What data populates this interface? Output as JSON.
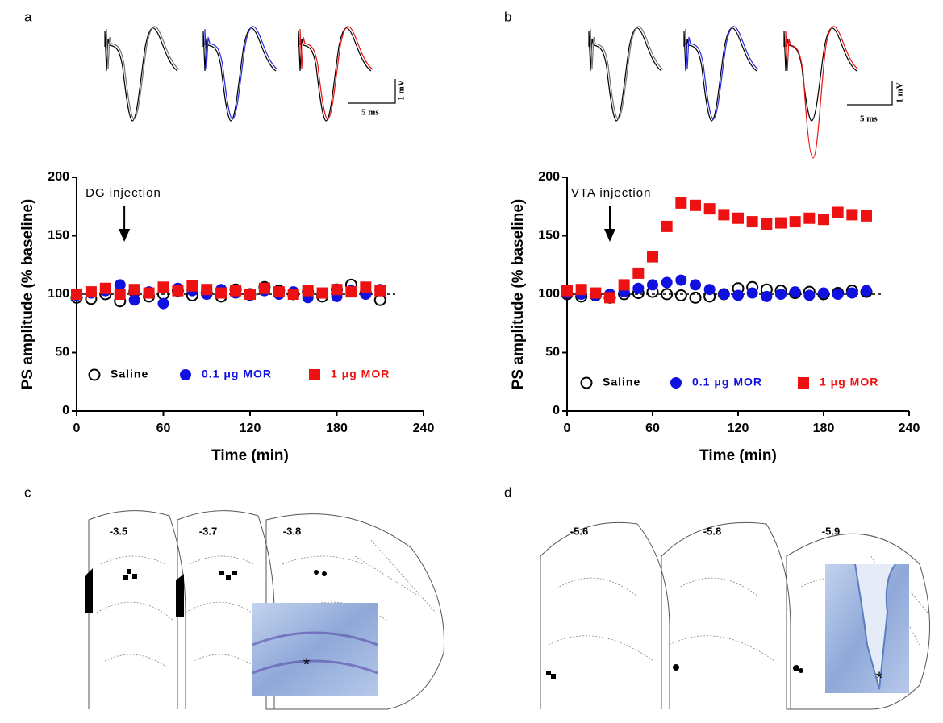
{
  "chart_data": [
    {
      "type": "scatter",
      "x_label": "Time (min)",
      "y_label": "PS amplitude (% baseline)",
      "x": [
        0,
        10,
        20,
        30,
        40,
        50,
        60,
        70,
        80,
        90,
        100,
        110,
        120,
        130,
        140,
        150,
        160,
        170,
        180,
        190,
        200,
        210
      ],
      "series": [
        {
          "name": "Saline",
          "color": "#000000",
          "marker": "circle-open",
          "values": [
            97,
            96,
            100,
            94,
            102,
            98,
            100,
            103,
            99,
            101,
            98,
            104,
            100,
            106,
            103,
            100,
            102,
            98,
            104,
            108,
            101,
            95
          ]
        },
        {
          "name": "0.1 μg MOR",
          "color": "#1010e0",
          "marker": "circle",
          "values": [
            99,
            101,
            103,
            108,
            95,
            102,
            92,
            105,
            103,
            100,
            104,
            101,
            99,
            103,
            100,
            102,
            97,
            101,
            98,
            103,
            100,
            104
          ]
        },
        {
          "name": "1 μg MOR",
          "color": "#ee1111",
          "marker": "square",
          "values": [
            100,
            102,
            105,
            100,
            104,
            101,
            106,
            103,
            107,
            104,
            101,
            103,
            100,
            105,
            102,
            100,
            103,
            101,
            104,
            102,
            106,
            103
          ]
        }
      ],
      "annotation": {
        "text": "DG injection",
        "x": 33
      },
      "reference_line": 100,
      "xlim": [
        0,
        240
      ],
      "xticks": [
        0,
        60,
        120,
        180,
        240
      ],
      "ylim": [
        0,
        200
      ],
      "yticks": [
        0,
        50,
        100,
        150,
        200
      ]
    },
    {
      "type": "scatter",
      "x_label": "Time (min)",
      "y_label": "PS amplitude (% baseline)",
      "x": [
        0,
        10,
        20,
        30,
        40,
        50,
        60,
        70,
        80,
        90,
        100,
        110,
        120,
        130,
        140,
        150,
        160,
        170,
        180,
        190,
        200,
        210
      ],
      "series": [
        {
          "name": "Saline",
          "color": "#000000",
          "marker": "circle-open",
          "values": [
            100,
            98,
            99,
            97,
            100,
            101,
            102,
            100,
            99,
            97,
            98,
            100,
            105,
            106,
            104,
            103,
            101,
            102,
            100,
            101,
            103,
            102
          ]
        },
        {
          "name": "0.1 μg MOR",
          "color": "#1010e0",
          "marker": "circle",
          "values": [
            101,
            100,
            99,
            100,
            102,
            105,
            108,
            110,
            112,
            108,
            104,
            100,
            99,
            101,
            98,
            100,
            102,
            99,
            101,
            100,
            101,
            103
          ]
        },
        {
          "name": "1 μg MOR",
          "color": "#ee1111",
          "marker": "square",
          "values": [
            103,
            104,
            101,
            97,
            108,
            118,
            132,
            158,
            178,
            176,
            173,
            168,
            165,
            162,
            160,
            161,
            162,
            165,
            164,
            170,
            168,
            167
          ]
        }
      ],
      "annotation": {
        "text": "VTA injection",
        "x": 30
      },
      "reference_line": 100,
      "xlim": [
        0,
        240
      ],
      "xticks": [
        0,
        60,
        120,
        180,
        240
      ],
      "ylim": [
        0,
        200
      ],
      "yticks": [
        0,
        50,
        100,
        150,
        200
      ]
    }
  ],
  "panels": {
    "labels": [
      "a",
      "b",
      "c",
      "d"
    ],
    "scale_time": "5 ms",
    "scale_voltage": "1 mV",
    "atlas_c": [
      "-3.5",
      "-3.7",
      "-3.8"
    ],
    "atlas_d": [
      "-5.6",
      "-5.8",
      "-5.9"
    ],
    "lesion_mark": "*"
  }
}
